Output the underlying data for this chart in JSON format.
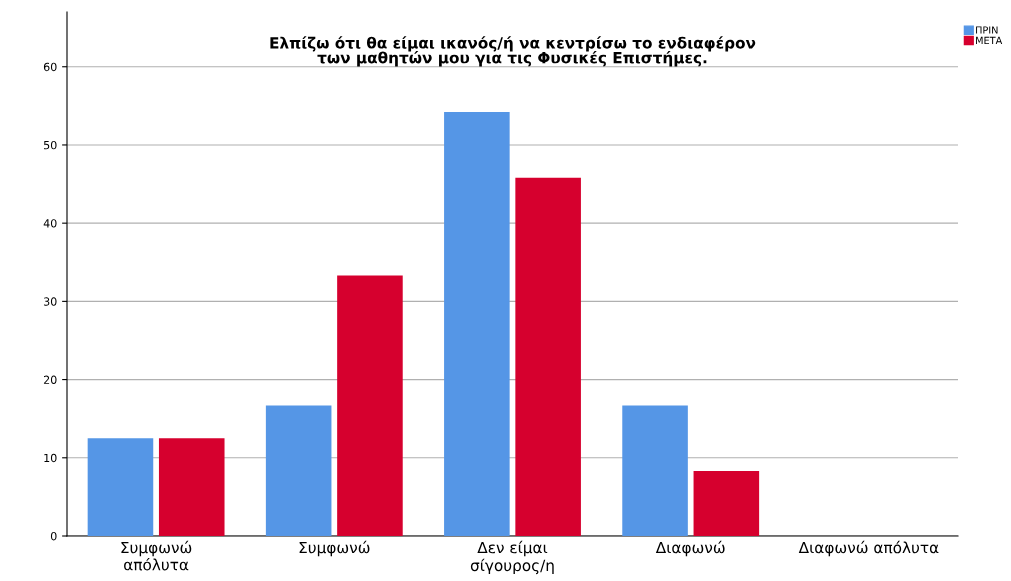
{
  "chart_data": {
    "type": "bar",
    "title": "Ελπίζω ότι θα είμαι ικανός/ή να κεντρίσω το ενδιαφέρον\nτων μαθητών μου για τις Φυσικές Επιστήμες.",
    "categories": [
      "Συμφωνώ\nαπόλυτα",
      "Συμφωνώ",
      "Δεν είμαι\nσίγουρος/η",
      "Διαφωνώ",
      "Διαφωνώ απόλυτα"
    ],
    "series": [
      {
        "name": "ΠΡΙΝ",
        "color": "#5596e6",
        "values": [
          12.5,
          16.7,
          54.2,
          16.7,
          0
        ]
      },
      {
        "name": "ΜΕΤΑ",
        "color": "#d6002e",
        "values": [
          12.5,
          33.3,
          45.8,
          8.3,
          0
        ]
      }
    ],
    "ylim": [
      0,
      67
    ],
    "yticks": [
      0,
      10,
      20,
      30,
      40,
      50,
      60
    ],
    "grid": "y",
    "legend": "top right"
  }
}
